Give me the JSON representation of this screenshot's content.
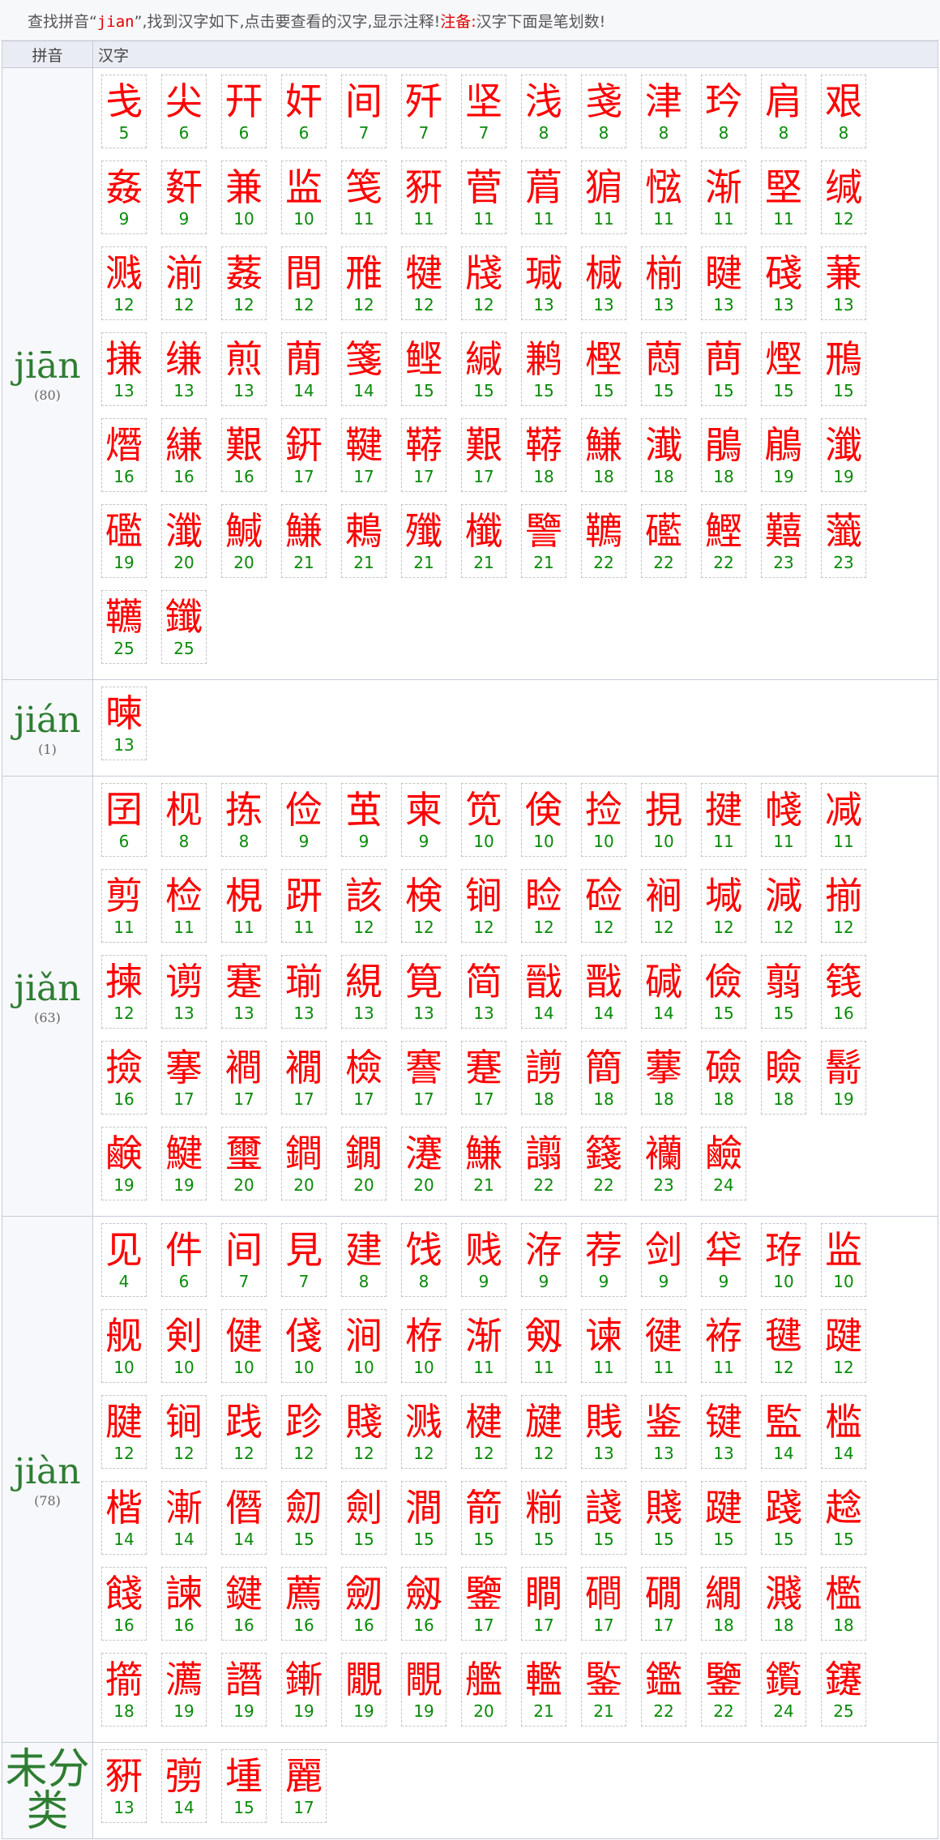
{
  "notice": {
    "text1": "查找拼音“",
    "query": "jian",
    "text2": "”,找到汉字如下,点击要查看的汉字,显示注释!",
    "note_label": "注备:",
    "note_text": "汉字下面是笔划数!"
  },
  "headers": {
    "pinyin": "拼音",
    "hanzi": "汉字"
  },
  "groups": [
    {
      "pinyin": "jiān",
      "count": "(80)",
      "chars": [
        [
          "戋",
          "5"
        ],
        [
          "尖",
          "6"
        ],
        [
          "幵",
          "6"
        ],
        [
          "奸",
          "6"
        ],
        [
          "间",
          "7"
        ],
        [
          "歼",
          "7"
        ],
        [
          "坚",
          "7"
        ],
        [
          "浅",
          "8"
        ],
        [
          "戔",
          "8"
        ],
        [
          "津",
          "8"
        ],
        [
          "玪",
          "8"
        ],
        [
          "肩",
          "8"
        ],
        [
          "艰",
          "8"
        ],
        [
          "姦",
          "9"
        ],
        [
          "姧",
          "9"
        ],
        [
          "兼",
          "10"
        ],
        [
          "监",
          "10"
        ],
        [
          "笺",
          "11"
        ],
        [
          "豣",
          "11"
        ],
        [
          "菅",
          "11"
        ],
        [
          "菺",
          "11"
        ],
        [
          "猏",
          "11"
        ],
        [
          "惤",
          "11"
        ],
        [
          "渐",
          "11"
        ],
        [
          "堅",
          "11"
        ],
        [
          "缄",
          "12"
        ],
        [
          "溅",
          "12"
        ],
        [
          "湔",
          "12"
        ],
        [
          "葌",
          "12"
        ],
        [
          "間",
          "12"
        ],
        [
          "雃",
          "12"
        ],
        [
          "犍",
          "12"
        ],
        [
          "牋",
          "12"
        ],
        [
          "瑊",
          "13"
        ],
        [
          "椷",
          "13"
        ],
        [
          "椾",
          "13"
        ],
        [
          "睷",
          "13"
        ],
        [
          "碊",
          "13"
        ],
        [
          "蒹",
          "13"
        ],
        [
          "搛",
          "13"
        ],
        [
          "缣",
          "13"
        ],
        [
          "煎",
          "13"
        ],
        [
          "蕑",
          "14"
        ],
        [
          "箋",
          "14"
        ],
        [
          "鲣",
          "15"
        ],
        [
          "緘",
          "15"
        ],
        [
          "鹣",
          "15"
        ],
        [
          "樫",
          "15"
        ],
        [
          "蕄",
          "15"
        ],
        [
          "蔄",
          "15"
        ],
        [
          "熞",
          "15"
        ],
        [
          "鳽",
          "15"
        ],
        [
          "熸",
          "16"
        ],
        [
          "縑",
          "16"
        ],
        [
          "艱",
          "16"
        ],
        [
          "銒",
          "17"
        ],
        [
          "鞬",
          "17"
        ],
        [
          "鞯",
          "17"
        ],
        [
          "艱",
          "17"
        ],
        [
          "鞯",
          "18"
        ],
        [
          "鰜",
          "18"
        ],
        [
          "瀐",
          "18"
        ],
        [
          "鵑",
          "18"
        ],
        [
          "鵳",
          "19"
        ],
        [
          "瀸",
          "19"
        ],
        [
          "礛",
          "19"
        ],
        [
          "瀸",
          "20"
        ],
        [
          "鰔",
          "20"
        ],
        [
          "鰜",
          "21"
        ],
        [
          "鵣",
          "21"
        ],
        [
          "殲",
          "21"
        ],
        [
          "櫼",
          "21"
        ],
        [
          "譼",
          "21"
        ],
        [
          "韀",
          "22"
        ],
        [
          "礷",
          "22"
        ],
        [
          "鰹",
          "22"
        ],
        [
          "囏",
          "23"
        ],
        [
          "虃",
          "23"
        ],
        [
          "韉",
          "25"
        ],
        [
          "鑯",
          "25"
        ]
      ]
    },
    {
      "pinyin": "jián",
      "count": "(1)",
      "chars": [
        [
          "暕",
          "13"
        ]
      ]
    },
    {
      "pinyin": "jiǎn",
      "count": "(63)",
      "chars": [
        [
          "囝",
          "6"
        ],
        [
          "枧",
          "8"
        ],
        [
          "拣",
          "8"
        ],
        [
          "俭",
          "9"
        ],
        [
          "茧",
          "9"
        ],
        [
          "柬",
          "9"
        ],
        [
          "笕",
          "10"
        ],
        [
          "倹",
          "10"
        ],
        [
          "捡",
          "10"
        ],
        [
          "挸",
          "10"
        ],
        [
          "揵",
          "11"
        ],
        [
          "帴",
          "11"
        ],
        [
          "减",
          "11"
        ],
        [
          "剪",
          "11"
        ],
        [
          "检",
          "11"
        ],
        [
          "梘",
          "11"
        ],
        [
          "趼",
          "11"
        ],
        [
          "該",
          "12"
        ],
        [
          "検",
          "12"
        ],
        [
          "锏",
          "12"
        ],
        [
          "睑",
          "12"
        ],
        [
          "硷",
          "12"
        ],
        [
          "裥",
          "12"
        ],
        [
          "堿",
          "12"
        ],
        [
          "減",
          "12"
        ],
        [
          "揃",
          "12"
        ],
        [
          "揀",
          "12"
        ],
        [
          "谫",
          "13"
        ],
        [
          "蹇",
          "13"
        ],
        [
          "瑐",
          "13"
        ],
        [
          "絸",
          "13"
        ],
        [
          "筧",
          "13"
        ],
        [
          "简",
          "13"
        ],
        [
          "戩",
          "14"
        ],
        [
          "戬",
          "14"
        ],
        [
          "碱",
          "14"
        ],
        [
          "儉",
          "15"
        ],
        [
          "翦",
          "15"
        ],
        [
          "篯",
          "16"
        ],
        [
          "撿",
          "16"
        ],
        [
          "搴",
          "17"
        ],
        [
          "襇",
          "17"
        ],
        [
          "襉",
          "17"
        ],
        [
          "檢",
          "17"
        ],
        [
          "謇",
          "17"
        ],
        [
          "蹇",
          "17"
        ],
        [
          "謭",
          "18"
        ],
        [
          "簡",
          "18"
        ],
        [
          "藆",
          "18"
        ],
        [
          "礆",
          "18"
        ],
        [
          "瞼",
          "18"
        ],
        [
          "鬋",
          "19"
        ],
        [
          "鹸",
          "19"
        ],
        [
          "鰎",
          "19"
        ],
        [
          "璽",
          "20"
        ],
        [
          "鐧",
          "20"
        ],
        [
          "鐗",
          "20"
        ],
        [
          "瀽",
          "20"
        ],
        [
          "鰜",
          "21"
        ],
        [
          "譾",
          "22"
        ],
        [
          "籛",
          "22"
        ],
        [
          "襽",
          "23"
        ],
        [
          "鹼",
          "24"
        ]
      ]
    },
    {
      "pinyin": "jiàn",
      "count": "(78)",
      "chars": [
        [
          "见",
          "4"
        ],
        [
          "件",
          "6"
        ],
        [
          "间",
          "7"
        ],
        [
          "見",
          "7"
        ],
        [
          "建",
          "8"
        ],
        [
          "饯",
          "8"
        ],
        [
          "贱",
          "9"
        ],
        [
          "洊",
          "9"
        ],
        [
          "荐",
          "9"
        ],
        [
          "剑",
          "9"
        ],
        [
          "牮",
          "9"
        ],
        [
          "珔",
          "10"
        ],
        [
          "监",
          "10"
        ],
        [
          "舰",
          "10"
        ],
        [
          "剣",
          "10"
        ],
        [
          "健",
          "10"
        ],
        [
          "俴",
          "10"
        ],
        [
          "涧",
          "10"
        ],
        [
          "栫",
          "10"
        ],
        [
          "渐",
          "11"
        ],
        [
          "剱",
          "11"
        ],
        [
          "谏",
          "11"
        ],
        [
          "徤",
          "11"
        ],
        [
          "袸",
          "11"
        ],
        [
          "毽",
          "12"
        ],
        [
          "踺",
          "12"
        ],
        [
          "腱",
          "12"
        ],
        [
          "锏",
          "12"
        ],
        [
          "践",
          "12"
        ],
        [
          "跈",
          "12"
        ],
        [
          "賤",
          "12"
        ],
        [
          "溅",
          "12"
        ],
        [
          "楗",
          "12"
        ],
        [
          "旔",
          "12"
        ],
        [
          "賎",
          "13"
        ],
        [
          "鉴",
          "13"
        ],
        [
          "键",
          "13"
        ],
        [
          "監",
          "14"
        ],
        [
          "槛",
          "14"
        ],
        [
          "楷",
          "14"
        ],
        [
          "漸",
          "14"
        ],
        [
          "僭",
          "14"
        ],
        [
          "劎",
          "15"
        ],
        [
          "劍",
          "15"
        ],
        [
          "澗",
          "15"
        ],
        [
          "箭",
          "15"
        ],
        [
          "糋",
          "15"
        ],
        [
          "諓",
          "15"
        ],
        [
          "賤",
          "15"
        ],
        [
          "踺",
          "15"
        ],
        [
          "踐",
          "15"
        ],
        [
          "趝",
          "15"
        ],
        [
          "餞",
          "16"
        ],
        [
          "諫",
          "16"
        ],
        [
          "鍵",
          "16"
        ],
        [
          "薦",
          "16"
        ],
        [
          "劒",
          "16"
        ],
        [
          "劔",
          "16"
        ],
        [
          "鑒",
          "17"
        ],
        [
          "瞷",
          "17"
        ],
        [
          "磵",
          "17"
        ],
        [
          "礀",
          "17"
        ],
        [
          "繝",
          "18"
        ],
        [
          "濺",
          "18"
        ],
        [
          "檻",
          "18"
        ],
        [
          "擶",
          "18"
        ],
        [
          "瀳",
          "19"
        ],
        [
          "譖",
          "19"
        ],
        [
          "鏩",
          "19"
        ],
        [
          "覵",
          "19"
        ],
        [
          "覸",
          "19"
        ],
        [
          "艦",
          "20"
        ],
        [
          "轞",
          "21"
        ],
        [
          "鍳",
          "21"
        ],
        [
          "鑑",
          "22"
        ],
        [
          "鑒",
          "22"
        ],
        [
          "鑬",
          "24"
        ],
        [
          "鑳",
          "25"
        ]
      ]
    },
    {
      "pinyin": "未分类",
      "count": "",
      "chars": [
        [
          "豣",
          "13"
        ],
        [
          "彅",
          "14"
        ],
        [
          "堹",
          "15"
        ],
        [
          "麗",
          "17"
        ]
      ]
    }
  ]
}
